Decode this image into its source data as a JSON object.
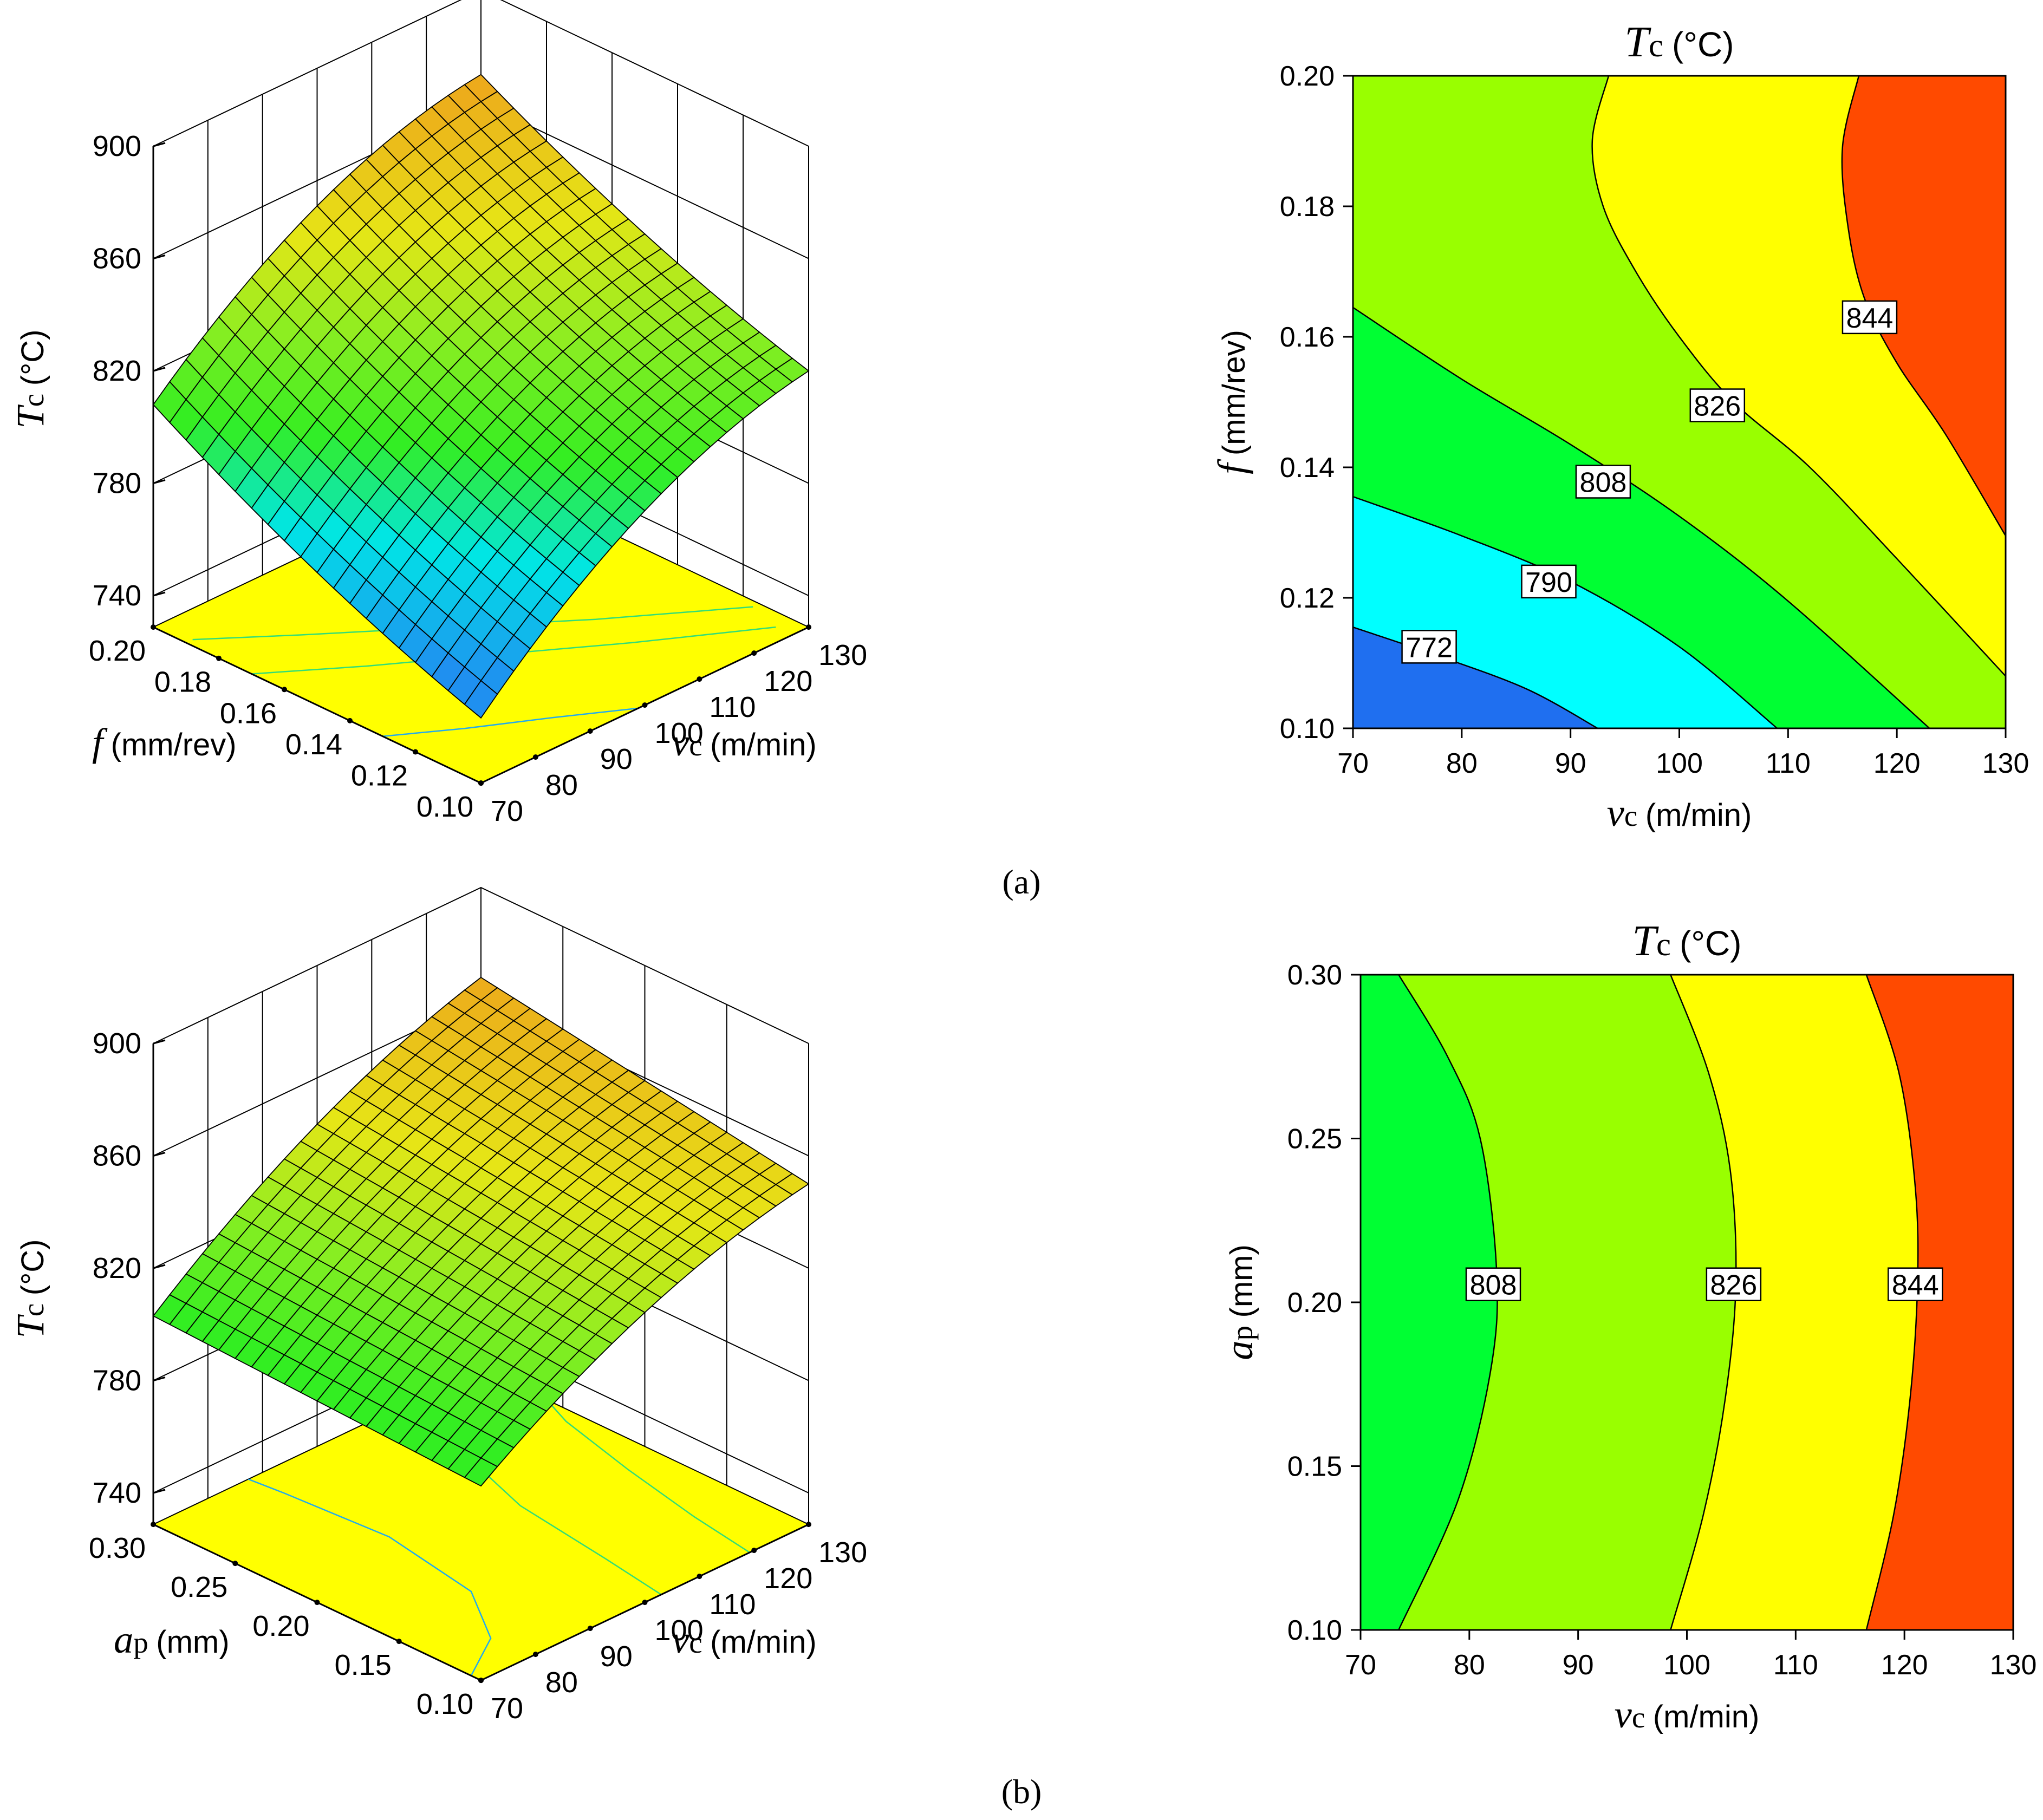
{
  "chart_data": [
    {
      "type": "surface3d",
      "panel": "a-surface",
      "zlabel": "Tc (°C)",
      "zlabel_main": "T",
      "zlabel_sub": "c",
      "zlabel_unit": "(°C)",
      "zlim": [
        740,
        900
      ],
      "z_ticks": [
        "740",
        "780",
        "820",
        "860",
        "900"
      ],
      "x_factor": "f (mm/rev)",
      "x_label_main": "f",
      "x_label_unit": "(mm/rev)",
      "x_ticks": [
        "0.10",
        "0.12",
        "0.14",
        "0.16",
        "0.18",
        "0.20"
      ],
      "x_range": [
        0.1,
        0.2
      ],
      "y_label_main": "v",
      "y_label_sub": "c",
      "y_label_unit": "(m/min)",
      "y_ticks": [
        "70",
        "80",
        "90",
        "100",
        "110",
        "120",
        "130"
      ],
      "y_range": [
        70,
        130
      ],
      "grid": true,
      "surface_corners": [
        {
          "x": 0.1,
          "y": 70,
          "z": 752
        },
        {
          "x": 0.2,
          "y": 70,
          "z": 808
        },
        {
          "x": 0.2,
          "y": 130,
          "z": 870
        },
        {
          "x": 0.1,
          "y": 130,
          "z": 820
        }
      ],
      "color_scale": [
        {
          "z": 760,
          "color": "#1f90f0"
        },
        {
          "z": 785,
          "color": "#00e6e6"
        },
        {
          "z": 805,
          "color": "#33ee22"
        },
        {
          "z": 825,
          "color": "#88ee22"
        },
        {
          "z": 845,
          "color": "#e6e616"
        },
        {
          "z": 880,
          "color": "#f08c1e"
        }
      ],
      "base_color": "#ffff00"
    },
    {
      "type": "contour",
      "panel": "a-contour",
      "title": "Tc (°C)",
      "title_main": "T",
      "title_sub": "c",
      "title_unit": "(°C)",
      "x_label_main": "v",
      "x_label_sub": "c",
      "x_label_unit": "(m/min)",
      "y_label_main": "f",
      "y_label_unit": "(mm/rev)",
      "xlim": [
        70,
        130
      ],
      "ylim": [
        0.1,
        0.2
      ],
      "x_ticks": [
        "70",
        "80",
        "90",
        "100",
        "110",
        "120",
        "130"
      ],
      "y_ticks": [
        "0.10",
        "0.12",
        "0.14",
        "0.16",
        "0.18",
        "0.20"
      ],
      "levels": [
        {
          "label": "772",
          "color": "#1f6ff0",
          "path": [
            [
              70,
              0.1155
            ],
            [
              78,
              0.111
            ],
            [
              86,
              0.106
            ],
            [
              92.5,
              0.1
            ]
          ],
          "label_at": [
            77,
            0.1125
          ]
        },
        {
          "label": "790",
          "color": "#00ffff",
          "path": [
            [
              70,
              0.1355
            ],
            [
              80,
              0.1295
            ],
            [
              90,
              0.1225
            ],
            [
              100,
              0.1125
            ],
            [
              109,
              0.1
            ]
          ],
          "label_at": [
            88,
            0.1225
          ]
        },
        {
          "label": "808",
          "color": "#00ff33",
          "path": [
            [
              70,
              0.1645
            ],
            [
              80,
              0.1535
            ],
            [
              90,
              0.1435
            ],
            [
              100,
              0.1325
            ],
            [
              110,
              0.1195
            ],
            [
              123,
              0.1
            ]
          ],
          "label_at": [
            93,
            0.1378
          ]
        },
        {
          "label": "826",
          "color": "#99ff00",
          "path": [
            [
              93.5,
              0.2
            ],
            [
              92,
              0.19
            ],
            [
              93,
              0.18
            ],
            [
              96,
              0.17
            ],
            [
              100,
              0.16
            ],
            [
              105,
              0.15
            ],
            [
              112,
              0.14
            ],
            [
              120,
              0.126
            ],
            [
              130,
              0.108
            ]
          ],
          "label_at": [
            103.5,
            0.1495
          ]
        },
        {
          "label": "844",
          "color": "#ffff00",
          "path": [
            [
              116.5,
              0.2
            ],
            [
              115,
              0.189
            ],
            [
              115.5,
              0.177
            ],
            [
              117,
              0.166
            ],
            [
              120,
              0.156
            ],
            [
              124.5,
              0.145
            ],
            [
              130,
              0.1295
            ]
          ],
          "label_at": [
            117.5,
            0.163
          ]
        }
      ],
      "top_color": "#ff4a00"
    },
    {
      "type": "surface3d",
      "panel": "b-surface",
      "zlabel": "Tc (°C)",
      "zlabel_main": "T",
      "zlabel_sub": "c",
      "zlabel_unit": "(°C)",
      "zlim": [
        740,
        900
      ],
      "z_ticks": [
        "740",
        "780",
        "820",
        "860",
        "900"
      ],
      "x_factor": "ap (mm)",
      "x_label_main": "a",
      "x_label_sub": "p",
      "x_label_unit": "(mm)",
      "x_ticks": [
        "0.10",
        "0.15",
        "0.20",
        "0.25",
        "0.30"
      ],
      "x_range": [
        0.1,
        0.3
      ],
      "y_label_main": "v",
      "y_label_sub": "c",
      "y_label_unit": "(m/min)",
      "y_ticks": [
        "70",
        "80",
        "90",
        "100",
        "110",
        "120",
        "130"
      ],
      "y_range": [
        70,
        130
      ],
      "grid": true,
      "surface_corners": [
        {
          "x": 0.1,
          "y": 70,
          "z": 798
        },
        {
          "x": 0.3,
          "y": 70,
          "z": 803
        },
        {
          "x": 0.3,
          "y": 130,
          "z": 868
        },
        {
          "x": 0.1,
          "y": 130,
          "z": 850
        }
      ],
      "color_scale": [
        {
          "z": 805,
          "color": "#33ee22"
        },
        {
          "z": 825,
          "color": "#88ee22"
        },
        {
          "z": 845,
          "color": "#e6e616"
        },
        {
          "z": 880,
          "color": "#f08c1e"
        }
      ],
      "base_color": "#ffff00"
    },
    {
      "type": "contour",
      "panel": "b-contour",
      "title": "Tc (°C)",
      "title_main": "T",
      "title_sub": "c",
      "title_unit": "(°C)",
      "x_label_main": "v",
      "x_label_sub": "c",
      "x_label_unit": "(m/min)",
      "y_label_main": "a",
      "y_label_sub": "p",
      "y_label_unit": "(mm)",
      "xlim": [
        70,
        130
      ],
      "ylim": [
        0.1,
        0.3
      ],
      "x_ticks": [
        "70",
        "80",
        "90",
        "100",
        "110",
        "120",
        "130"
      ],
      "y_ticks": [
        "0.10",
        "0.15",
        "0.20",
        "0.25",
        "0.30"
      ],
      "levels": [
        {
          "label": "808",
          "color": "#00ff33",
          "path": [
            [
              73.5,
              0.3
            ],
            [
              78,
              0.275
            ],
            [
              81,
              0.25
            ],
            [
              82.5,
              0.21
            ],
            [
              82,
              0.18
            ],
            [
              79,
              0.14
            ],
            [
              73.5,
              0.1
            ]
          ],
          "label_at": [
            82.2,
            0.2055
          ]
        },
        {
          "label": "826",
          "color": "#99ff00",
          "path": [
            [
              98.5,
              0.3
            ],
            [
              102,
              0.27
            ],
            [
              104,
              0.24
            ],
            [
              104.5,
              0.205
            ],
            [
              103.5,
              0.17
            ],
            [
              101.5,
              0.135
            ],
            [
              98.5,
              0.1
            ]
          ],
          "label_at": [
            104.3,
            0.2055
          ]
        },
        {
          "label": "844",
          "color": "#ffff00",
          "path": [
            [
              116.5,
              0.3
            ],
            [
              119.5,
              0.27
            ],
            [
              121,
              0.235
            ],
            [
              121.2,
              0.205
            ],
            [
              120.5,
              0.17
            ],
            [
              119,
              0.135
            ],
            [
              116.5,
              0.1
            ]
          ],
          "label_at": [
            121.0,
            0.2055
          ]
        }
      ],
      "top_color": "#ff4a00"
    }
  ],
  "captions": {
    "a": "(a)",
    "b": "(b)"
  }
}
